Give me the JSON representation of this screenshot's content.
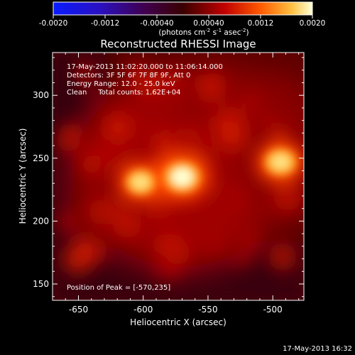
{
  "colorbar": {
    "ticks": [
      "-0.0020",
      "-0.0012",
      "-0.00040",
      "0.00040",
      "0.0012",
      "0.0020"
    ],
    "unit_parts": [
      "(photons cm",
      "-2",
      " s",
      "-1",
      " asec",
      "-2",
      ")"
    ]
  },
  "footer": {
    "timestamp": "17-May-2013 16:32"
  },
  "chart_data": {
    "type": "heatmap",
    "title": "Reconstructed RHESSI Image",
    "xlabel": "Heliocentric X (arcsec)",
    "ylabel": "Heliocentric Y (arcsec)",
    "xlim": [
      -670,
      -476
    ],
    "ylim": [
      137,
      334
    ],
    "xticks": [
      -650,
      -600,
      -550,
      -500
    ],
    "yticks": [
      150,
      200,
      250,
      300
    ],
    "colorbar_range": [
      -0.002,
      0.002
    ],
    "colormap": "red-temperature",
    "annotations": [
      "17-May-2013 11:02:20.000 to 11:06:14.000",
      "Detectors: 3F 5F 6F 7F 8F 9F, Att 0",
      "Energy Range: 12.0 - 25.0 keV",
      "Clean     Total counts: 1.62E+04"
    ],
    "peak_label": "Position of Peak = [-570,235]",
    "peak_position": [
      -570,
      235
    ],
    "sources": [
      {
        "x": -570,
        "y": 235,
        "intensity": 0.002
      },
      {
        "x": -602,
        "y": 231,
        "intensity": 0.0016
      },
      {
        "x": -494,
        "y": 247,
        "intensity": 0.0017
      }
    ]
  }
}
